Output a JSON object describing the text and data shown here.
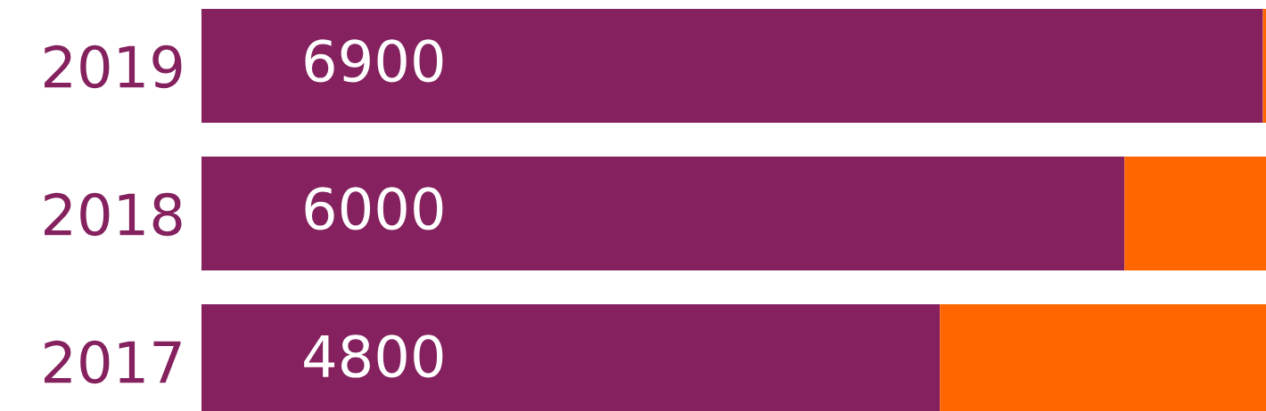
{
  "chart_data": {
    "type": "bar",
    "orientation": "horizontal",
    "stacked": true,
    "categories": [
      "2019",
      "2018",
      "2017"
    ],
    "series": [
      {
        "color": "#84215e",
        "values": [
          6900,
          6000,
          4800
        ],
        "value_labels": [
          "6900",
          "6000",
          "4800"
        ]
      },
      {
        "color": "#ff6600",
        "values": [
          20,
          920,
          2120
        ]
      }
    ],
    "xlim": [
      0,
      6920
    ],
    "tick_labels": "y",
    "grid": false,
    "legend": false
  }
}
